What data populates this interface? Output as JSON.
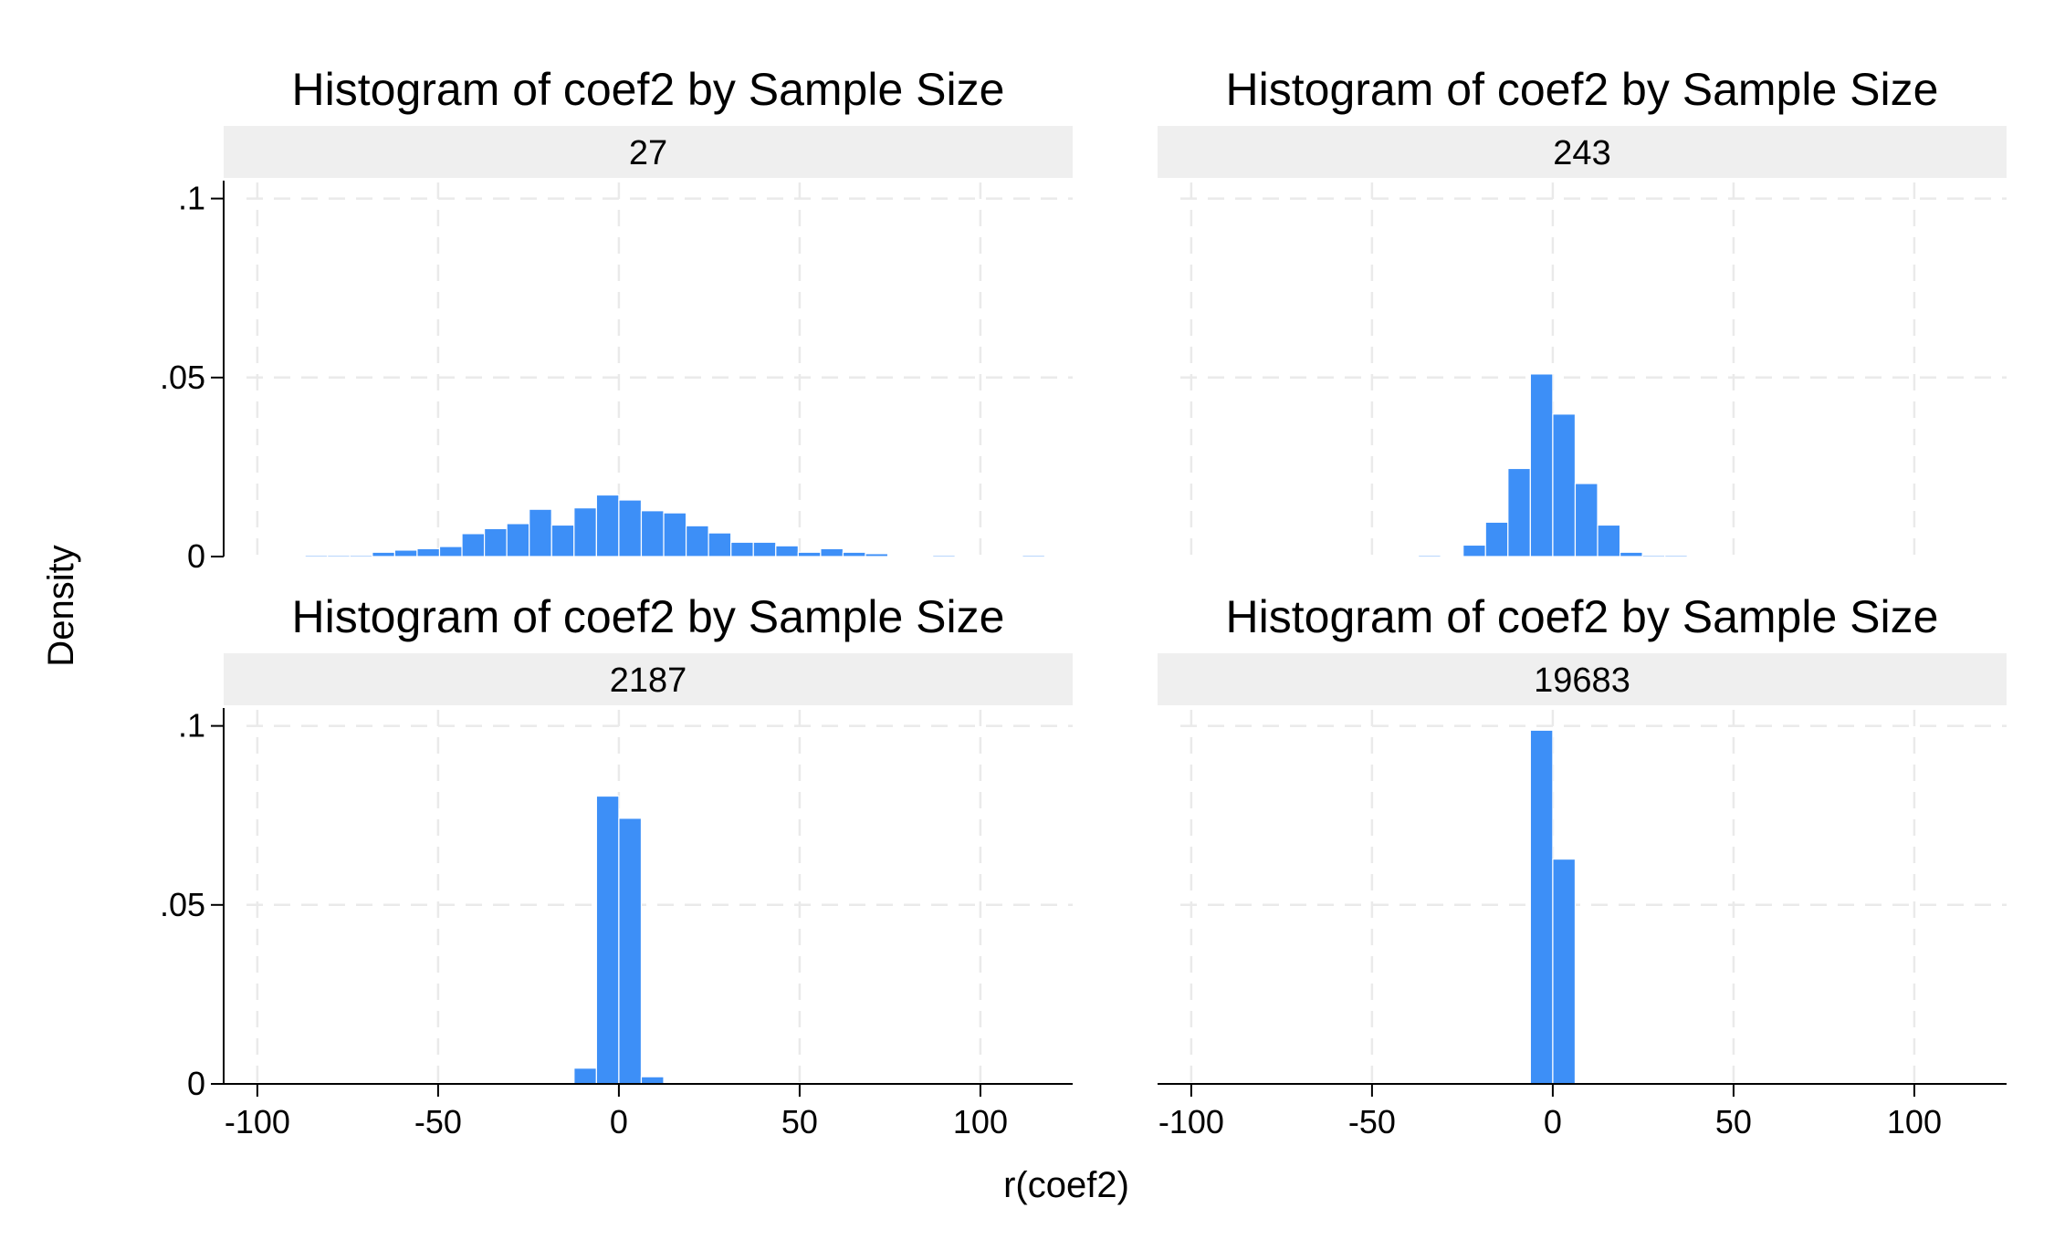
{
  "figure": {
    "xlabel": "r(coef2)",
    "ylabel": "Density"
  },
  "colors": {
    "bar_fill": "#3d8ff7",
    "strip_fill": "#efefef",
    "grid": "#eaeaea"
  },
  "chart_data": [
    {
      "type": "bar",
      "title": "Histogram of coef2 by Sample Size",
      "panel_label": "27",
      "xlim": [
        -103,
        124
      ],
      "ylim": [
        0,
        0.105
      ],
      "xticks": [
        -100,
        -50,
        0,
        50,
        100
      ],
      "xtick_labels": [
        "-100",
        "-50",
        "0",
        "50",
        "100"
      ],
      "yticks": [
        0,
        0.05,
        0.1
      ],
      "ytick_labels": [
        "0",
        ".05",
        ".1"
      ],
      "x_tick_labels_shown": false,
      "y_tick_labels_shown": true,
      "bin_width": 6.2,
      "bin_starts": [
        -86.8,
        -80.6,
        -74.4,
        -68.2,
        -62.0,
        -55.8,
        -49.6,
        -43.4,
        -37.2,
        -31.0,
        -24.8,
        -18.6,
        -12.4,
        -6.2,
        0.0,
        6.2,
        12.4,
        18.6,
        24.8,
        31.0,
        37.2,
        43.4,
        49.6,
        55.8,
        62.0,
        68.2,
        74.4,
        80.6,
        86.8,
        93.0,
        99.2,
        105.4,
        111.6
      ],
      "values": [
        0.0004,
        0.0004,
        0.0004,
        0.0012,
        0.0018,
        0.0022,
        0.0028,
        0.0064,
        0.0078,
        0.0092,
        0.0132,
        0.0088,
        0.0136,
        0.0172,
        0.0158,
        0.0128,
        0.0122,
        0.0086,
        0.0066,
        0.004,
        0.004,
        0.003,
        0.0012,
        0.0022,
        0.0012,
        0.0008,
        0.0002,
        0,
        0.0004,
        0,
        0,
        0,
        0.0004
      ]
    },
    {
      "type": "bar",
      "title": "Histogram of coef2 by Sample Size",
      "panel_label": "243",
      "xlim": [
        -103,
        124
      ],
      "ylim": [
        0,
        0.105
      ],
      "xticks": [
        -100,
        -50,
        0,
        50,
        100
      ],
      "xtick_labels": [
        "-100",
        "-50",
        "0",
        "50",
        "100"
      ],
      "yticks": [
        0,
        0.05,
        0.1
      ],
      "ytick_labels": [
        "0",
        ".05",
        ".1"
      ],
      "x_tick_labels_shown": false,
      "y_tick_labels_shown": false,
      "bin_width": 6.2,
      "bin_starts": [
        -37.2,
        -31.0,
        -24.8,
        -18.6,
        -12.4,
        -6.2,
        0.0,
        6.2,
        12.4,
        18.6,
        24.8,
        31.0
      ],
      "values": [
        0.0004,
        0,
        0.0032,
        0.0096,
        0.0246,
        0.051,
        0.0398,
        0.0204,
        0.0088,
        0.0012,
        0.0004,
        0.0004
      ]
    },
    {
      "type": "bar",
      "title": "Histogram of coef2 by Sample Size",
      "panel_label": "2187",
      "xlim": [
        -103,
        124
      ],
      "ylim": [
        0,
        0.105
      ],
      "xticks": [
        -100,
        -50,
        0,
        50,
        100
      ],
      "xtick_labels": [
        "-100",
        "-50",
        "0",
        "50",
        "100"
      ],
      "yticks": [
        0,
        0.05,
        0.1
      ],
      "ytick_labels": [
        "0",
        ".05",
        ".1"
      ],
      "x_tick_labels_shown": true,
      "y_tick_labels_shown": true,
      "bin_width": 6.2,
      "bin_starts": [
        -12.4,
        -6.2,
        0.0,
        6.2
      ],
      "values": [
        0.0044,
        0.0804,
        0.0742,
        0.002
      ]
    },
    {
      "type": "bar",
      "title": "Histogram of coef2 by Sample Size",
      "panel_label": "19683",
      "xlim": [
        -103,
        124
      ],
      "ylim": [
        0,
        0.105
      ],
      "xticks": [
        -100,
        -50,
        0,
        50,
        100
      ],
      "xtick_labels": [
        "-100",
        "-50",
        "0",
        "50",
        "100"
      ],
      "yticks": [
        0,
        0.05,
        0.1
      ],
      "ytick_labels": [
        "0",
        ".05",
        ".1"
      ],
      "x_tick_labels_shown": true,
      "y_tick_labels_shown": false,
      "bin_width": 6.2,
      "bin_starts": [
        -6.2,
        0.0
      ],
      "values": [
        0.0988,
        0.0628
      ]
    }
  ]
}
